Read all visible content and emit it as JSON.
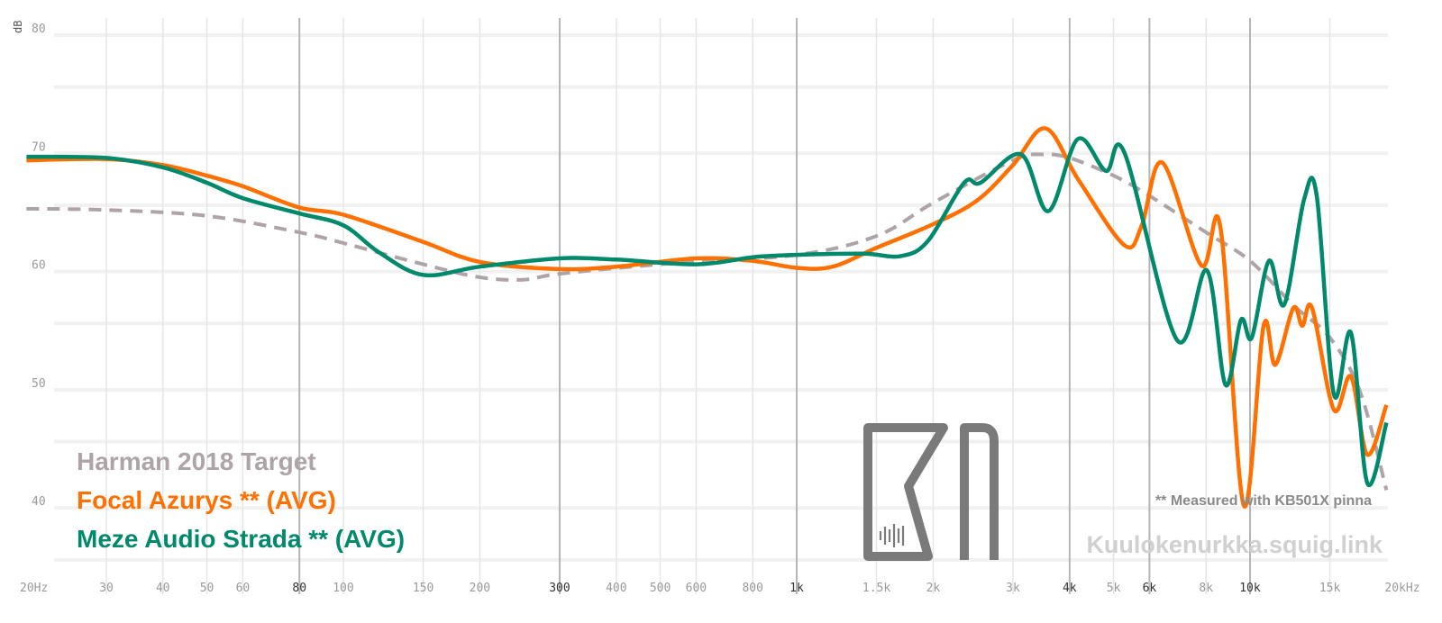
{
  "chart_data": {
    "type": "line",
    "title": "",
    "xlabel": "",
    "ylabel": "dB",
    "xscale": "log",
    "xlim": [
      20,
      20000
    ],
    "ylim": [
      35,
      81
    ],
    "grid": true,
    "legend_placement": "bottom-left",
    "x_ticks": [
      {
        "label": "20Hz",
        "value": 20,
        "major": false
      },
      {
        "label": "30",
        "value": 30,
        "major": false
      },
      {
        "label": "40",
        "value": 40,
        "major": false
      },
      {
        "label": "50",
        "value": 50,
        "major": false
      },
      {
        "label": "60",
        "value": 60,
        "major": false
      },
      {
        "label": "80",
        "value": 80,
        "major": true
      },
      {
        "label": "100",
        "value": 100,
        "major": false
      },
      {
        "label": "150",
        "value": 150,
        "major": false
      },
      {
        "label": "200",
        "value": 200,
        "major": false
      },
      {
        "label": "300",
        "value": 300,
        "major": true
      },
      {
        "label": "400",
        "value": 400,
        "major": false
      },
      {
        "label": "500",
        "value": 500,
        "major": false
      },
      {
        "label": "600",
        "value": 600,
        "major": false
      },
      {
        "label": "800",
        "value": 800,
        "major": false
      },
      {
        "label": "1k",
        "value": 1000,
        "major": true
      },
      {
        "label": "1.5k",
        "value": 1500,
        "major": false
      },
      {
        "label": "2k",
        "value": 2000,
        "major": false
      },
      {
        "label": "3k",
        "value": 3000,
        "major": false
      },
      {
        "label": "4k",
        "value": 4000,
        "major": true
      },
      {
        "label": "5k",
        "value": 5000,
        "major": false
      },
      {
        "label": "6k",
        "value": 6000,
        "major": true
      },
      {
        "label": "8k",
        "value": 8000,
        "major": false
      },
      {
        "label": "10k",
        "value": 10000,
        "major": true
      },
      {
        "label": "15k",
        "value": 15000,
        "major": false
      },
      {
        "label": "20kHz",
        "value": 20000,
        "major": false
      }
    ],
    "y_ticks": [
      {
        "label": "80",
        "value": 80
      },
      {
        "label": "70",
        "value": 70
      },
      {
        "label": "60",
        "value": 60
      },
      {
        "label": "50",
        "value": 50
      },
      {
        "label": "40",
        "value": 40
      }
    ],
    "series": [
      {
        "name": "Harman 2018 Target",
        "color": "#aea3a6",
        "dashed": true,
        "points": [
          [
            20,
            64.7
          ],
          [
            30,
            64.6
          ],
          [
            50,
            64.1
          ],
          [
            80,
            62.7
          ],
          [
            100,
            61.8
          ],
          [
            150,
            60.0
          ],
          [
            200,
            58.9
          ],
          [
            250,
            58.7
          ],
          [
            300,
            59.2
          ],
          [
            500,
            60.0
          ],
          [
            1000,
            60.8
          ],
          [
            1500,
            62.4
          ],
          [
            2000,
            65.2
          ],
          [
            3000,
            68.8
          ],
          [
            3500,
            69.3
          ],
          [
            4000,
            69.0
          ],
          [
            5000,
            67.5
          ],
          [
            6000,
            65.8
          ],
          [
            8000,
            62.7
          ],
          [
            10000,
            60.3
          ],
          [
            12500,
            56.5
          ],
          [
            15000,
            53.8
          ],
          [
            17500,
            49.2
          ],
          [
            20000,
            40.9
          ]
        ]
      },
      {
        "name": "Focal Azurys ** (AVG)",
        "color": "#ff7000",
        "dashed": false,
        "points": [
          [
            20,
            68.8
          ],
          [
            30,
            68.9
          ],
          [
            40,
            68.4
          ],
          [
            50,
            67.5
          ],
          [
            60,
            66.6
          ],
          [
            80,
            64.8
          ],
          [
            100,
            64.2
          ],
          [
            150,
            61.9
          ],
          [
            200,
            60.2
          ],
          [
            300,
            59.6
          ],
          [
            400,
            59.8
          ],
          [
            600,
            60.5
          ],
          [
            800,
            60.3
          ],
          [
            1000,
            59.7
          ],
          [
            1200,
            59.8
          ],
          [
            1500,
            61.4
          ],
          [
            2000,
            63.4
          ],
          [
            2500,
            65.4
          ],
          [
            3000,
            68.4
          ],
          [
            3540,
            71.5
          ],
          [
            4190,
            67.1
          ],
          [
            5290,
            61.6
          ],
          [
            5770,
            63.3
          ],
          [
            6410,
            68.6
          ],
          [
            7810,
            59.9
          ],
          [
            8600,
            63.2
          ],
          [
            9690,
            39.6
          ],
          [
            10710,
            54.8
          ],
          [
            11370,
            51.5
          ],
          [
            12460,
            56.3
          ],
          [
            13040,
            54.8
          ],
          [
            13710,
            56.3
          ],
          [
            15310,
            47.7
          ],
          [
            16700,
            50.5
          ],
          [
            18140,
            43.9
          ],
          [
            20000,
            48.1
          ]
        ]
      },
      {
        "name": "Meze Audio Strada ** (AVG)",
        "color": "#00896b",
        "dashed": false,
        "points": [
          [
            20,
            69.1
          ],
          [
            30,
            69.0
          ],
          [
            40,
            68.2
          ],
          [
            50,
            66.9
          ],
          [
            60,
            65.6
          ],
          [
            80,
            64.3
          ],
          [
            100,
            63.3
          ],
          [
            120,
            61.0
          ],
          [
            150,
            59.1
          ],
          [
            200,
            59.8
          ],
          [
            300,
            60.5
          ],
          [
            400,
            60.4
          ],
          [
            600,
            60.0
          ],
          [
            800,
            60.6
          ],
          [
            1000,
            60.8
          ],
          [
            1400,
            60.9
          ],
          [
            1700,
            60.7
          ],
          [
            1950,
            62.0
          ],
          [
            2340,
            66.9
          ],
          [
            2545,
            66.9
          ],
          [
            3126,
            69.3
          ],
          [
            3590,
            64.5
          ],
          [
            4170,
            70.6
          ],
          [
            4810,
            67.9
          ],
          [
            5290,
            69.4
          ],
          [
            6900,
            53.6
          ],
          [
            8030,
            59.5
          ],
          [
            8830,
            49.8
          ],
          [
            9550,
            55.3
          ],
          [
            10090,
            53.8
          ],
          [
            11010,
            60.3
          ],
          [
            11900,
            56.6
          ],
          [
            13160,
            65.5
          ],
          [
            14030,
            65.8
          ],
          [
            15310,
            49.0
          ],
          [
            16700,
            54.2
          ],
          [
            18140,
            41.5
          ],
          [
            20000,
            46.6
          ]
        ]
      }
    ]
  },
  "annotations": {
    "note": "** Measured with KB501X pinna",
    "site": "Kuulokenurkka.squig.link"
  },
  "logo": {
    "text": "KN"
  }
}
